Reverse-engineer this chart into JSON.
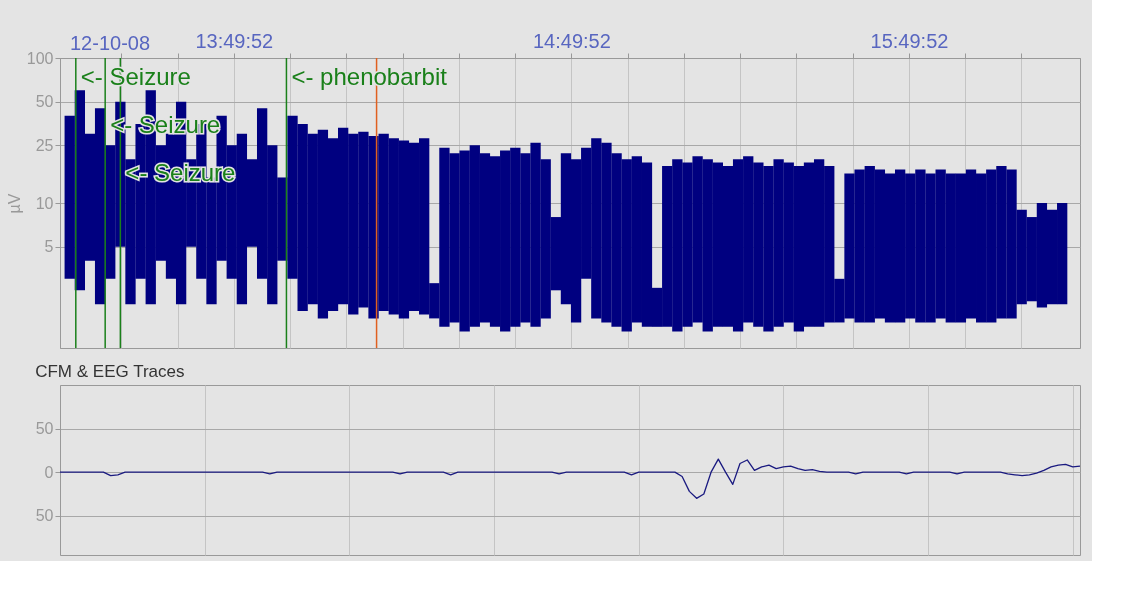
{
  "chart_data": [
    {
      "type": "bar",
      "color": "#000080",
      "log": true,
      "grid": true,
      "ylabel": "µV",
      "annotations": [
        "12-10-08"
      ],
      "x": [
        13.345,
        13.375,
        13.405,
        13.435,
        13.465,
        13.495,
        13.525,
        13.555,
        13.585,
        13.615,
        13.645,
        13.675,
        13.705,
        13.735,
        13.765,
        13.795,
        13.825,
        13.855,
        13.885,
        13.915,
        13.945,
        13.975,
        14.005,
        14.035,
        14.065,
        14.095,
        14.125,
        14.155,
        14.185,
        14.215,
        14.245,
        14.275,
        14.305,
        14.335,
        14.365,
        14.395,
        14.425,
        14.455,
        14.485,
        14.515,
        14.545,
        14.575,
        14.605,
        14.635,
        14.665,
        14.695,
        14.725,
        14.755,
        14.785,
        14.815,
        14.845,
        14.875,
        14.905,
        14.935,
        14.965,
        14.995,
        15.025,
        15.055,
        15.085,
        15.115,
        15.145,
        15.175,
        15.205,
        15.235,
        15.265,
        15.295,
        15.325,
        15.355,
        15.385,
        15.415,
        15.445,
        15.475,
        15.505,
        15.535,
        15.565,
        15.595,
        15.625,
        15.655,
        15.685,
        15.715,
        15.745,
        15.775,
        15.805,
        15.835,
        15.865,
        15.895,
        15.925,
        15.955,
        15.985,
        16.015,
        16.045,
        16.075,
        16.105,
        16.135,
        16.165,
        16.195,
        16.225,
        16.255,
        16.285
      ],
      "base": [
        3,
        2.5,
        4,
        2,
        3,
        5,
        2,
        3,
        2,
        4,
        3,
        2,
        5,
        3,
        2,
        4,
        3,
        2,
        5,
        3,
        2,
        4,
        3,
        1.8,
        2,
        1.6,
        1.8,
        2,
        1.7,
        1.9,
        1.6,
        1.8,
        1.7,
        1.6,
        1.8,
        1.7,
        1.6,
        1.4,
        1.5,
        1.3,
        1.4,
        1.5,
        1.4,
        1.3,
        1.4,
        1.5,
        1.4,
        1.6,
        2.5,
        2,
        1.5,
        3,
        1.6,
        1.5,
        1.4,
        1.3,
        1.5,
        1.4,
        1.4,
        1.4,
        1.3,
        1.4,
        1.5,
        1.3,
        1.4,
        1.4,
        1.3,
        1.5,
        1.4,
        1.3,
        1.4,
        1.5,
        1.3,
        1.4,
        1.4,
        1.5,
        1.5,
        1.6,
        1.5,
        1.5,
        1.6,
        1.5,
        1.5,
        1.6,
        1.5,
        1.5,
        1.6,
        1.5,
        1.5,
        1.6,
        1.5,
        1.5,
        1.6,
        1.6,
        2,
        2.1,
        1.9,
        2,
        2
      ],
      "values": [
        37,
        57.5,
        26,
        43,
        22,
        45,
        18,
        32,
        58,
        21,
        27,
        48,
        15,
        32,
        13,
        36,
        22,
        28,
        15,
        42,
        23,
        11,
        37,
        33.2,
        28,
        30.4,
        26.2,
        31,
        28.3,
        29.1,
        27.4,
        28.2,
        26.3,
        25.4,
        24.2,
        26.3,
        1.2,
        22.6,
        20.5,
        21.7,
        23.6,
        20.5,
        19.6,
        21.7,
        22.6,
        20.5,
        24.6,
        18.4,
        5.5,
        20,
        18.5,
        21,
        26.4,
        24.5,
        20.6,
        18.7,
        19.5,
        17.6,
        1.2,
        16.6,
        18.7,
        17.6,
        19.5,
        18.7,
        17.6,
        16.6,
        18.7,
        19.5,
        17.6,
        16.7,
        18.6,
        17.5,
        16.7,
        17.6,
        18.6,
        16.5,
        1.5,
        14.4,
        15.5,
        16.5,
        15.4,
        14.5,
        15.5,
        14.4,
        15.5,
        14.5,
        15.4,
        14.5,
        14.5,
        15.4,
        14.5,
        15.5,
        16.4,
        15.4,
        7,
        5.9,
        8.1,
        7,
        8
      ],
      "xlim": [
        13.331,
        16.323
      ],
      "xticks": [
        {
          "value": 13.4978,
          "label": null
        },
        {
          "value": 13.6644,
          "label": null
        },
        {
          "value": 13.8311,
          "label": "13:49:52"
        },
        {
          "value": 13.9978,
          "label": null
        },
        {
          "value": 14.1644,
          "label": null
        },
        {
          "value": 14.3311,
          "label": null
        },
        {
          "value": 14.4978,
          "label": null
        },
        {
          "value": 14.6644,
          "label": null
        },
        {
          "value": 14.8311,
          "label": "14:49:52"
        },
        {
          "value": 14.9978,
          "label": null
        },
        {
          "value": 15.1644,
          "label": null
        },
        {
          "value": 15.3311,
          "label": null
        },
        {
          "value": 15.4978,
          "label": null
        },
        {
          "value": 15.6644,
          "label": null
        },
        {
          "value": 15.8311,
          "label": "15:49:52"
        },
        {
          "value": 15.9978,
          "label": null
        },
        {
          "value": 16.1644,
          "label": null
        }
      ],
      "ylim": [
        1,
        100
      ],
      "yticks": [
        5,
        10,
        25,
        50,
        100
      ],
      "ref_lines": [
        {
          "axis": "x",
          "value": 13.363,
          "label": "<- Seizure",
          "color": "#1a801a"
        },
        {
          "axis": "x",
          "value": 13.45,
          "label": "<- Seizure",
          "color": "#1a801a"
        },
        {
          "axis": "x",
          "value": 13.495,
          "label": "<- Seizure",
          "color": "#1a801a"
        },
        {
          "axis": "x",
          "value": 13.987,
          "label": "<- phenobarbit",
          "color": "#1a801a"
        },
        {
          "axis": "x",
          "value": 14.254,
          "color": "#e06020"
        }
      ]
    },
    {
      "type": "line",
      "title": "CFM & EEG Traces",
      "color": "#1a1a80",
      "grid": true,
      "categories": [
        null,
        null,
        null,
        null,
        null,
        null,
        null,
        null,
        null,
        null,
        null,
        null,
        null,
        null,
        null,
        null,
        null,
        null,
        null,
        null,
        null,
        null,
        null,
        null,
        null,
        null,
        null,
        null,
        null,
        null,
        null,
        null,
        null,
        null,
        null,
        null,
        null,
        null,
        null,
        null,
        null,
        null,
        null,
        null,
        null,
        null,
        null,
        null,
        null,
        null,
        null,
        null,
        null,
        null,
        null,
        null,
        null,
        null,
        null,
        null,
        null,
        null,
        null,
        null,
        null,
        null,
        null,
        null,
        null,
        null,
        null,
        null,
        null,
        null,
        null,
        null,
        null,
        null,
        null,
        null,
        null,
        null,
        null,
        null,
        null,
        null,
        null,
        null,
        null,
        null,
        null,
        null,
        null,
        null,
        null,
        null,
        null,
        null,
        null,
        null,
        null,
        null,
        null,
        null,
        null,
        null,
        null,
        null,
        null,
        null,
        null,
        null,
        null,
        null,
        null,
        null,
        null,
        null,
        null,
        null,
        null,
        null,
        null,
        null,
        null,
        null,
        null,
        null,
        null,
        null,
        null,
        null,
        null,
        null,
        null,
        null,
        null,
        null,
        null,
        null,
        null,
        null
      ],
      "values": [
        0,
        0,
        0,
        0,
        0,
        0,
        0,
        -4,
        -3,
        0,
        0,
        0,
        0,
        0,
        0,
        0,
        0,
        0,
        0,
        0,
        0,
        0,
        0,
        0,
        0,
        0,
        0,
        0,
        0,
        -2,
        0,
        0,
        0,
        0,
        0,
        0,
        0,
        0,
        0,
        0,
        0,
        0,
        0,
        0,
        0,
        0,
        0,
        -2,
        0,
        0,
        0,
        0,
        0,
        0,
        -3,
        0,
        0,
        0,
        0,
        0,
        0,
        0,
        0,
        0,
        0,
        0,
        0,
        0,
        0,
        -2,
        0,
        0,
        0,
        0,
        0,
        0,
        0,
        0,
        0,
        -3,
        0,
        0,
        0,
        0,
        0,
        0,
        -5,
        -22,
        -30,
        -25,
        0,
        15,
        0,
        -14,
        10,
        14,
        2,
        6,
        8,
        4,
        6,
        7,
        4,
        2,
        3,
        1,
        0,
        0,
        0,
        0,
        -2,
        0,
        0,
        0,
        0,
        0,
        0,
        -2,
        0,
        0,
        0,
        0,
        0,
        0,
        -2,
        0,
        0,
        0,
        0,
        0,
        0,
        -2,
        -3,
        -4,
        -3,
        -1,
        2,
        6,
        8,
        9,
        6,
        7
      ],
      "ylim": [
        -95,
        100
      ],
      "yticks": [
        {
          "value": 50,
          "label": "50"
        },
        0,
        {
          "value": -50,
          "label": "50"
        }
      ]
    }
  ]
}
